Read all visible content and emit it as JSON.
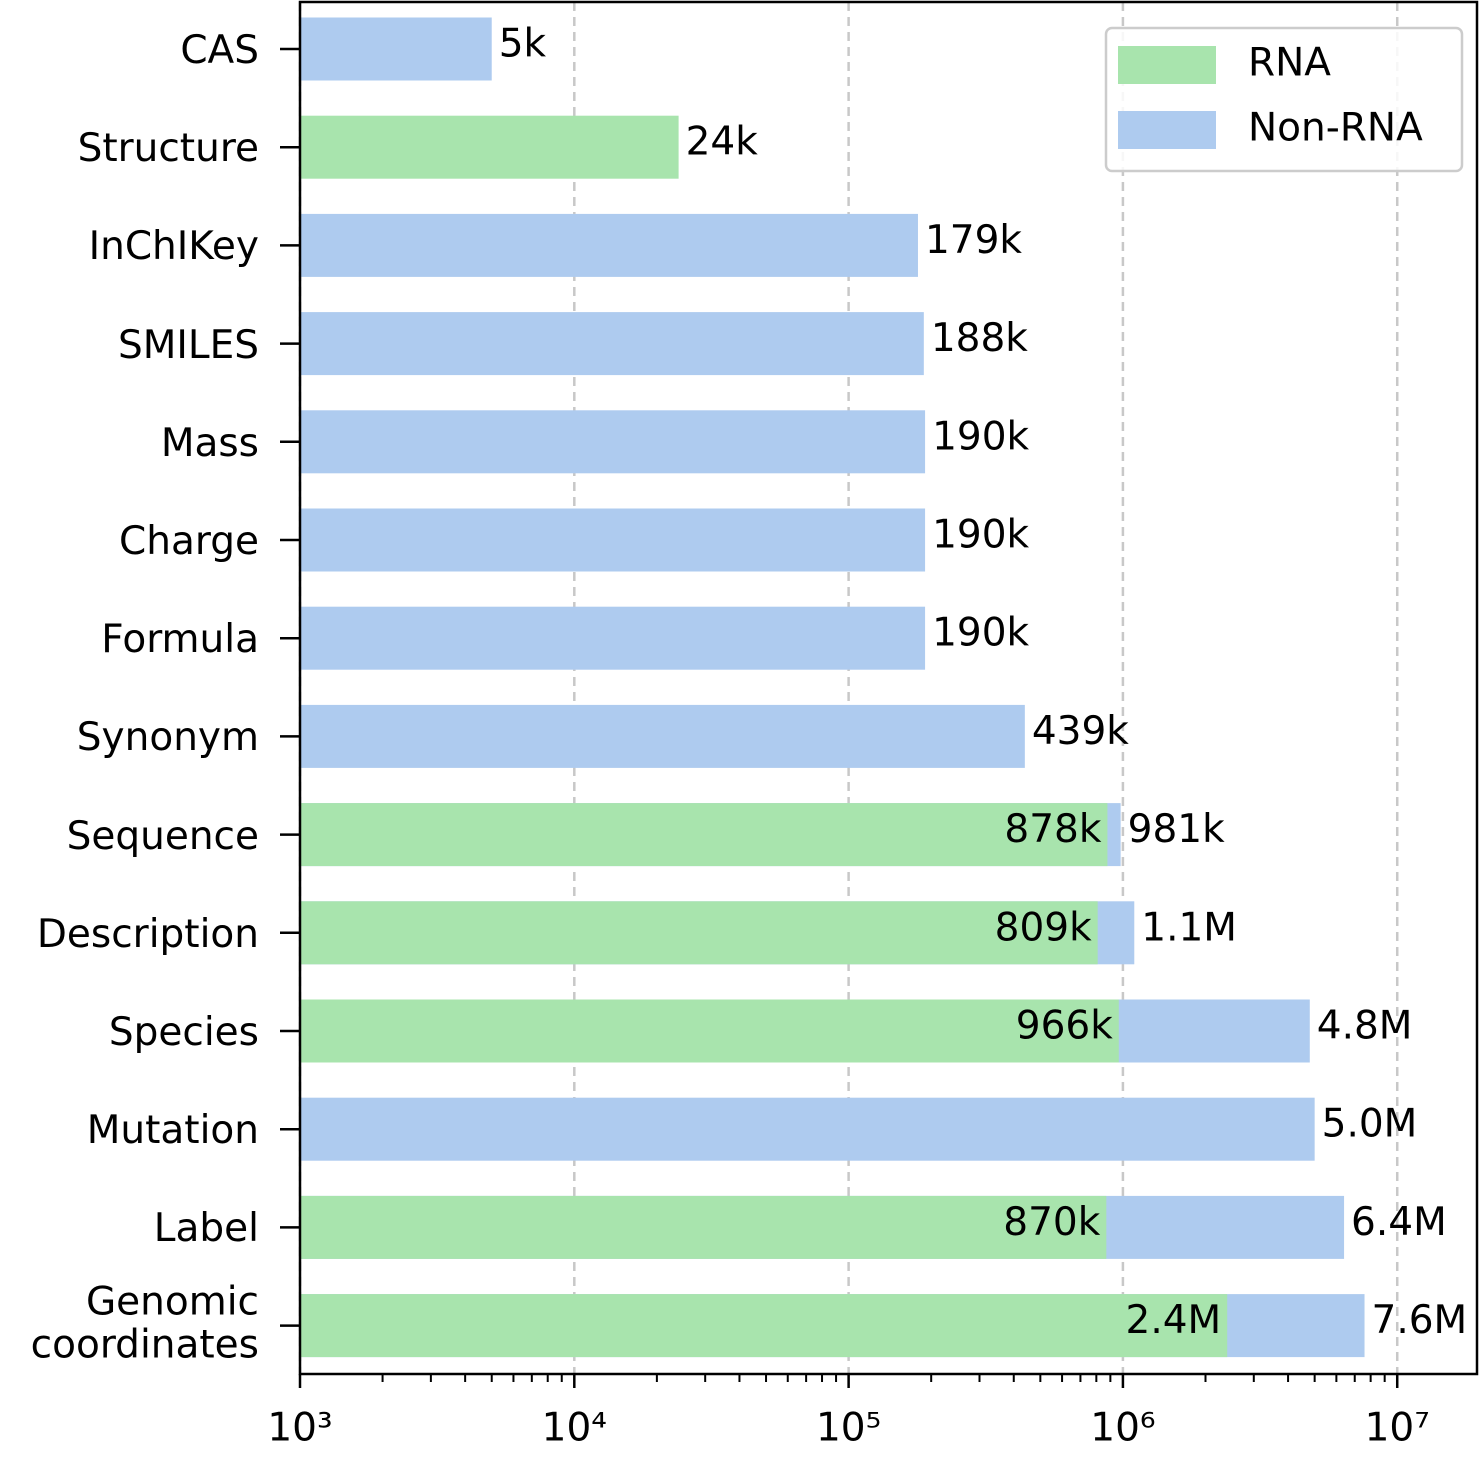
{
  "chart_data": {
    "type": "bar",
    "orientation": "horizontal",
    "overlay": true,
    "log_x": true,
    "categories": [
      "CAS",
      "Structure",
      "InChIKey",
      "SMILES",
      "Mass",
      "Charge",
      "Formula",
      "Synonym",
      "Sequence",
      "Description",
      "Species",
      "Mutation",
      "Label",
      "Genomic\ncoordinates"
    ],
    "series": [
      {
        "name": "Non-RNA",
        "color": "#aecbef",
        "values": [
          5000,
          null,
          179000,
          188000,
          190000,
          190000,
          190000,
          439000,
          981000,
          1100000,
          4800000,
          5000000,
          6400000,
          7600000
        ],
        "value_labels": [
          "5k",
          null,
          "179k",
          "188k",
          "190k",
          "190k",
          "190k",
          "439k",
          "981k",
          "1.1M",
          "4.8M",
          "5.0M",
          "6.4M",
          "7.6M"
        ]
      },
      {
        "name": "RNA",
        "color": "#a8e4ad",
        "values": [
          null,
          24000,
          null,
          null,
          null,
          null,
          null,
          null,
          878000,
          809000,
          966000,
          null,
          870000,
          2400000
        ],
        "value_labels": [
          null,
          "24k",
          null,
          null,
          null,
          null,
          null,
          null,
          "878k",
          "809k",
          "966k",
          null,
          "870k",
          "2.4M"
        ]
      }
    ],
    "legend_order": [
      "RNA",
      "Non-RNA"
    ],
    "legend": "upper right",
    "xlim": [
      1000,
      19700000
    ],
    "xticks": [
      {
        "value": 1000,
        "label": "10³"
      },
      {
        "value": 10000,
        "label": "10⁴"
      },
      {
        "value": 100000,
        "label": "10⁵"
      },
      {
        "value": 1000000,
        "label": "10⁶"
      },
      {
        "value": 10000000,
        "label": "10⁷"
      }
    ],
    "minor_xticks": [
      2000,
      3000,
      4000,
      5000,
      6000,
      7000,
      8000,
      9000,
      20000,
      30000,
      40000,
      50000,
      60000,
      70000,
      80000,
      90000,
      200000,
      300000,
      400000,
      500000,
      600000,
      700000,
      800000,
      900000,
      2000000,
      3000000,
      4000000,
      5000000,
      6000000,
      7000000,
      8000000,
      9000000
    ],
    "grid": true
  }
}
